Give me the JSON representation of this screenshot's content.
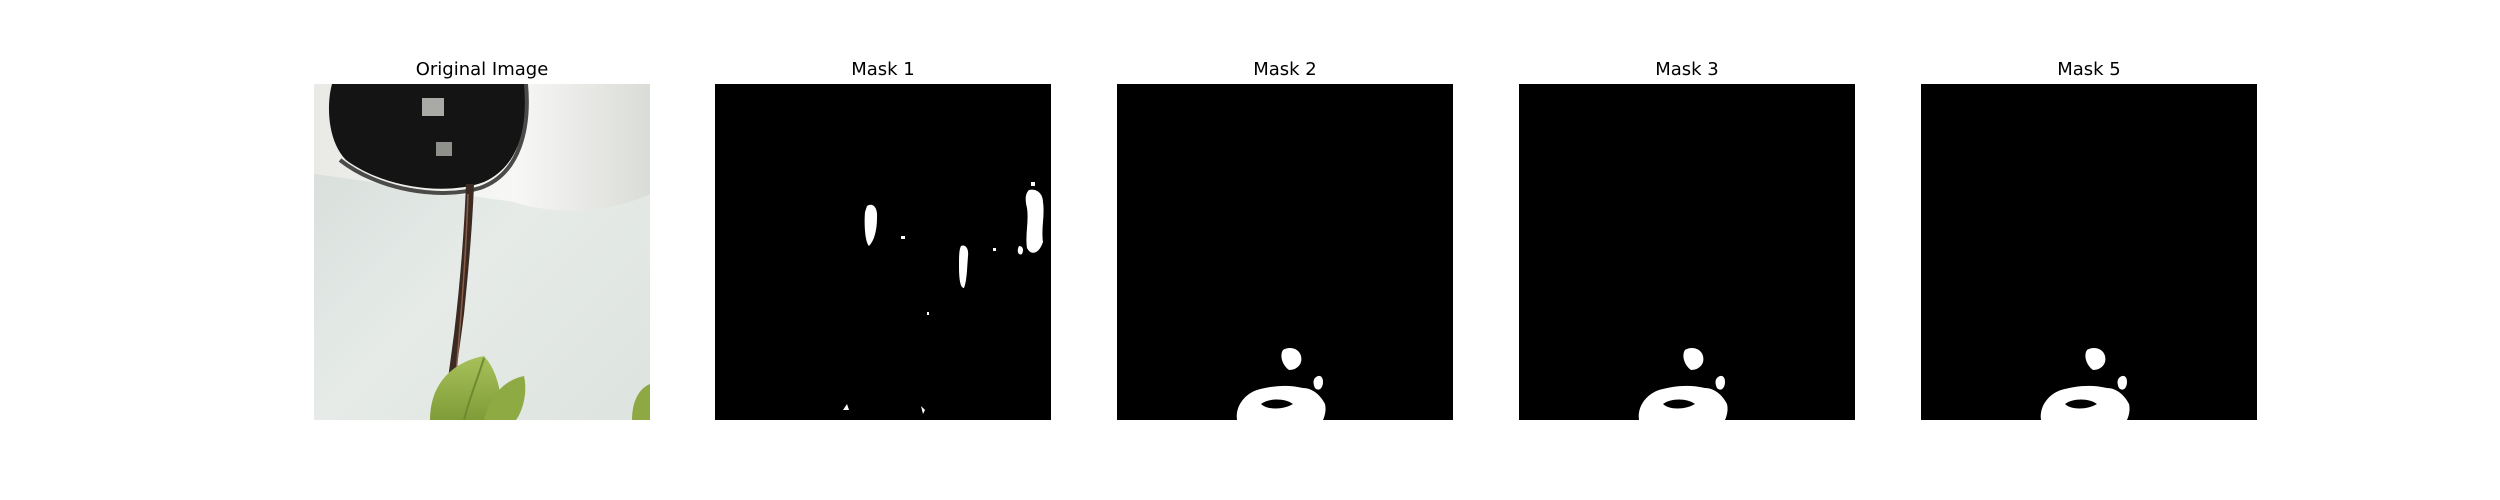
{
  "figure": {
    "panels": [
      {
        "title": "Original Image",
        "kind": "photo",
        "subject": "white pipe outlet over a white wall with a dark stream and green leaves"
      },
      {
        "title": "Mask 1",
        "kind": "mask"
      },
      {
        "title": "Mask 2",
        "kind": "mask"
      },
      {
        "title": "Mask 3",
        "kind": "mask"
      },
      {
        "title": "Mask 5",
        "kind": "mask"
      }
    ]
  },
  "colors": {
    "background": "#ffffff",
    "mask_background": "#000000",
    "mask_foreground": "#ffffff",
    "wall": "#dfe5e1",
    "pipe": "#f4f4f2",
    "pipe_opening": "#151515",
    "stream": "#3a2a22",
    "leaf": "#93b04a",
    "leaf_dark": "#6e8a2e"
  }
}
